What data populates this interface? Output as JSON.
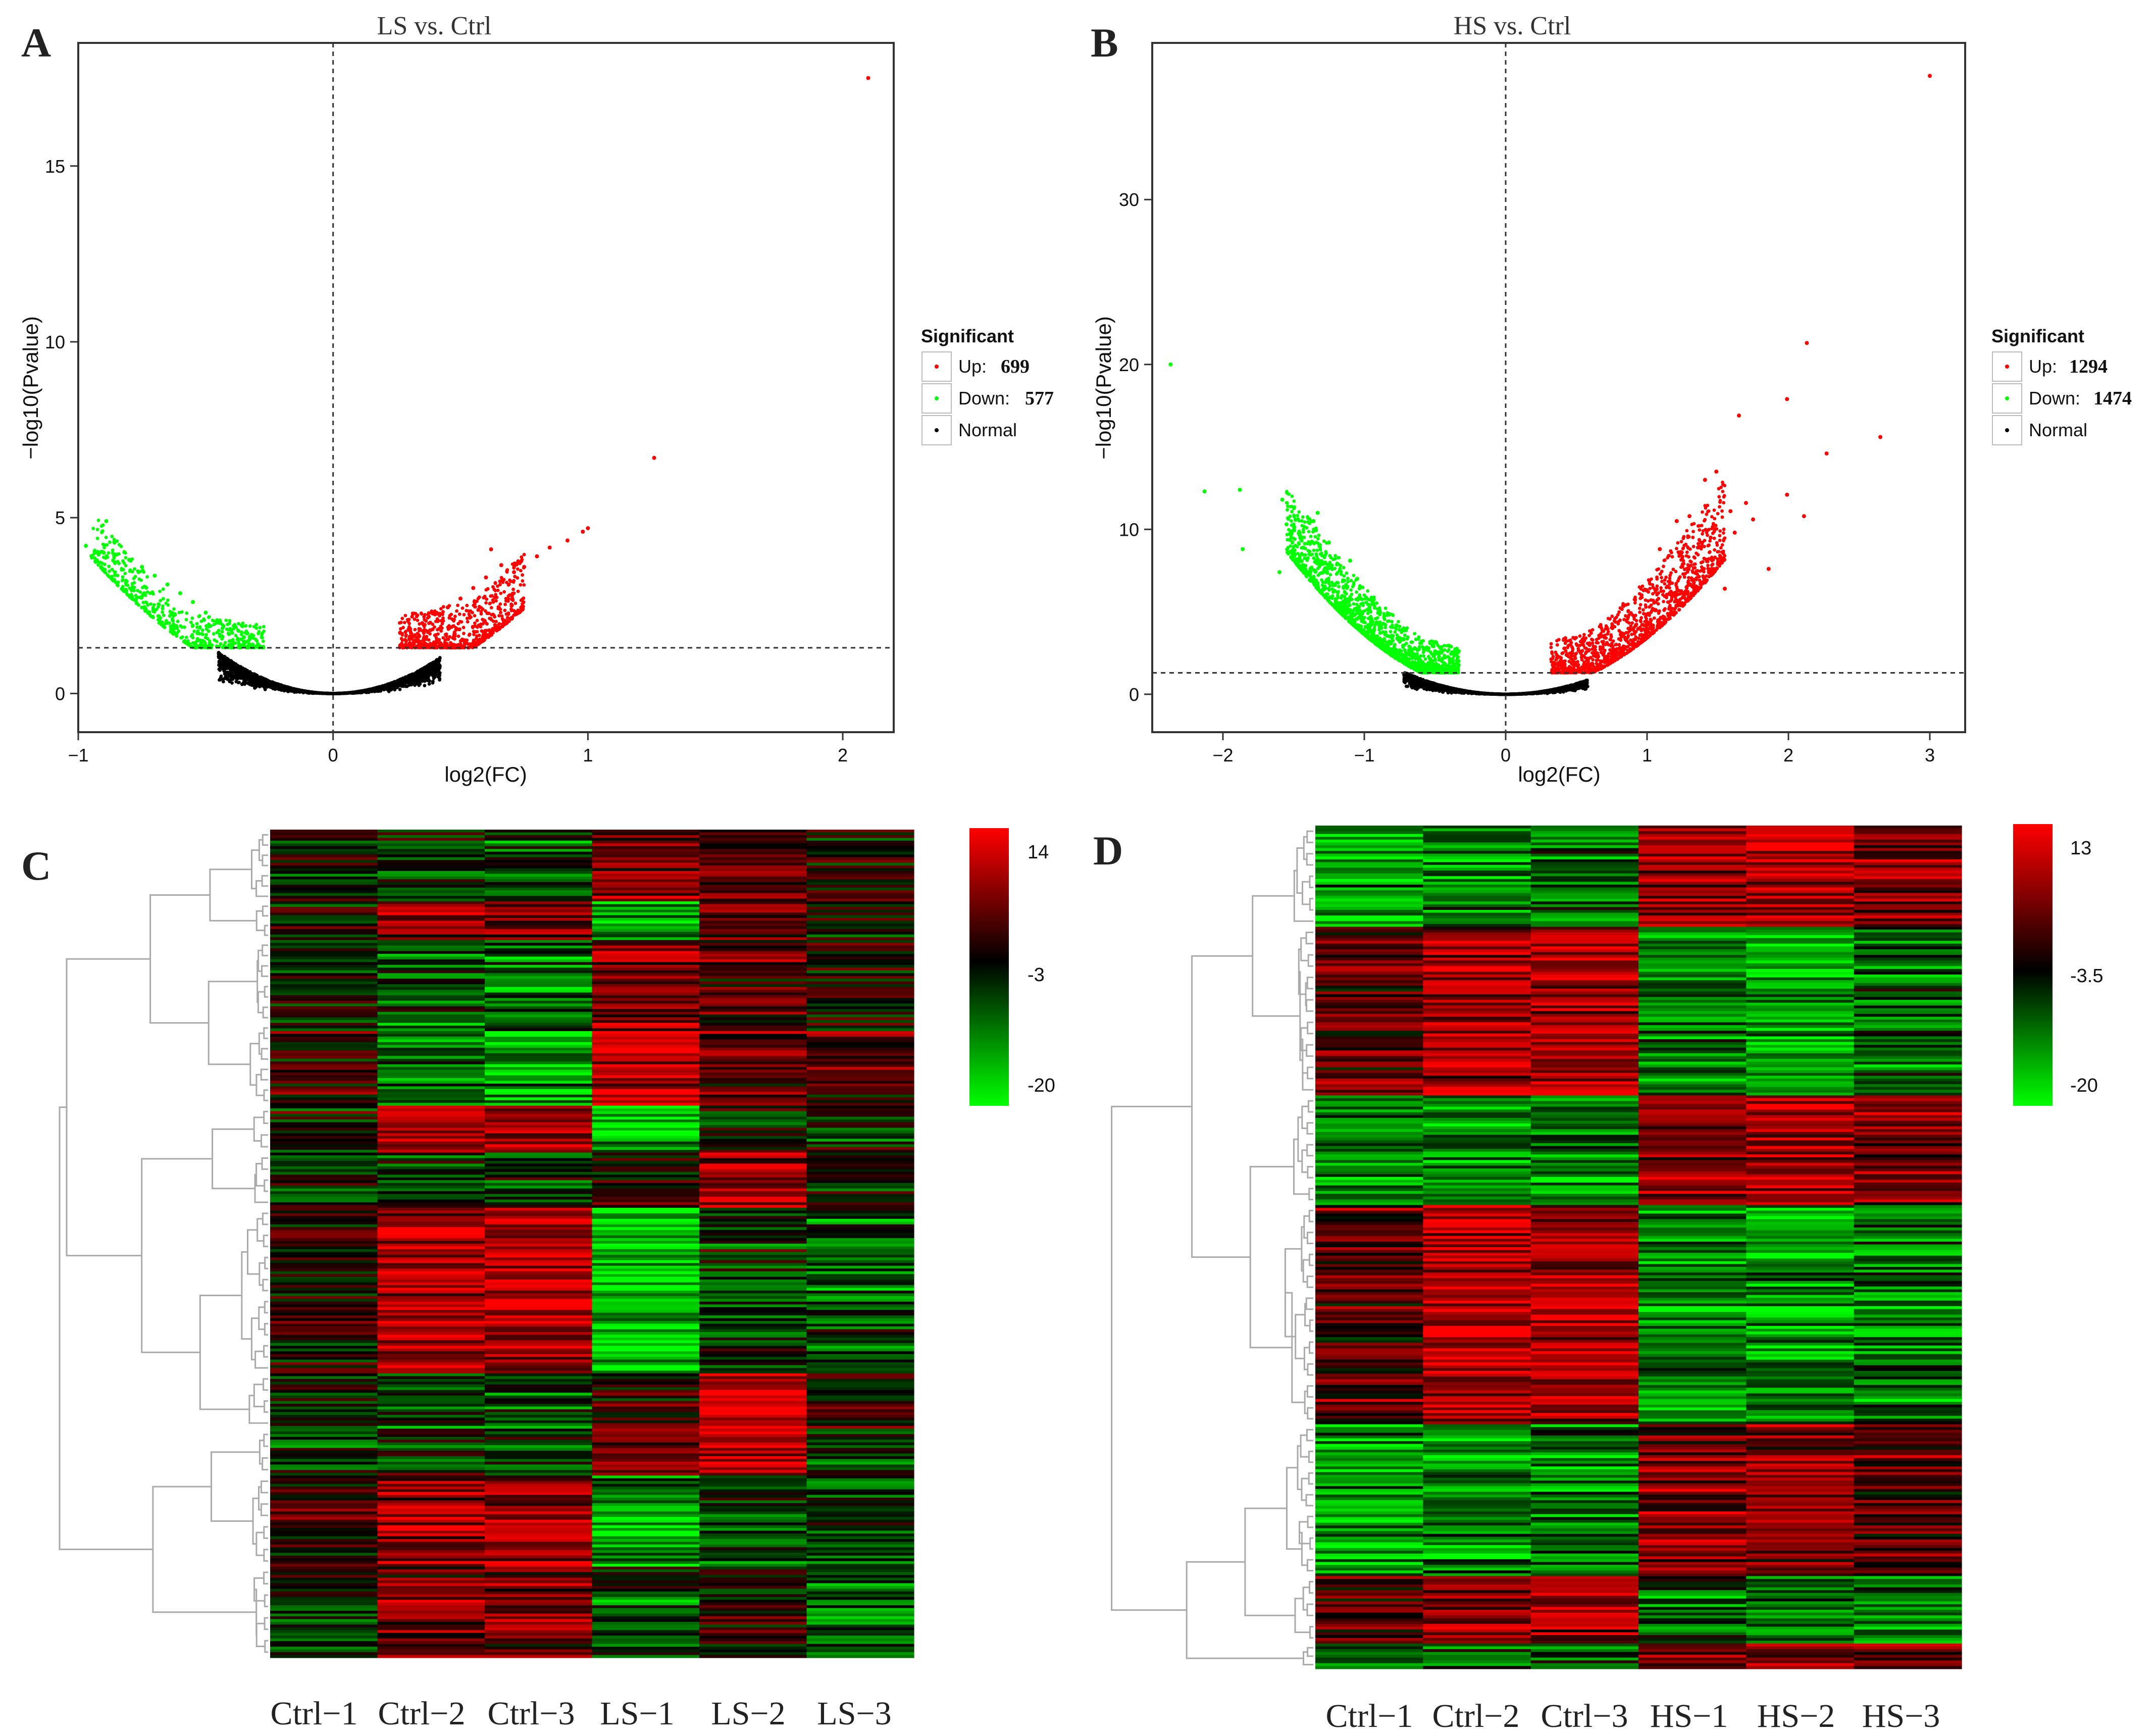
{
  "panels": {
    "A": {
      "letter": "A"
    },
    "B": {
      "letter": "B"
    },
    "C": {
      "letter": "C"
    },
    "D": {
      "letter": "D"
    }
  },
  "chart_data": [
    {
      "panel": "A",
      "type": "scatter",
      "title": "LS vs. Ctrl",
      "xlabel": "log2(FC)",
      "ylabel": "−log10(Pvalue)",
      "xlim": [
        -1.0,
        2.2
      ],
      "ylim": [
        -1.1,
        18.5
      ],
      "xticks": [
        -1,
        0,
        1,
        2
      ],
      "yticks": [
        0,
        5,
        10,
        15
      ],
      "vline": 0,
      "hline": 1.3,
      "legend": {
        "title": "Significant",
        "placement": "right",
        "entries": [
          {
            "key": "up",
            "label": "Up:",
            "count": "699",
            "color": "#ff0000"
          },
          {
            "key": "down",
            "label": "Down:",
            "count": "577",
            "color": "#00ff00"
          },
          {
            "key": "normal",
            "label": "Normal",
            "count": "",
            "color": "#000000"
          }
        ]
      },
      "series": [
        {
          "name": "Up",
          "color": "#ff0000",
          "points": [
            [
              2.1,
              17.5
            ],
            [
              1.26,
              6.7
            ],
            [
              1.0,
              4.7
            ],
            [
              0.98,
              4.6
            ],
            [
              0.92,
              4.35
            ],
            [
              0.85,
              4.15
            ],
            [
              0.8,
              3.9
            ],
            [
              0.75,
              3.6
            ],
            [
              0.71,
              3.45
            ],
            [
              0.62,
              4.1
            ],
            [
              0.66,
              3.65
            ],
            [
              0.6,
              3.3
            ],
            [
              0.55,
              3.0
            ],
            [
              0.5,
              2.7
            ],
            [
              0.45,
              2.45
            ],
            [
              0.4,
              2.25
            ],
            [
              0.35,
              2.0
            ],
            [
              0.3,
              1.8
            ]
          ],
          "cloud": {
            "x": [
              0.26,
              0.75
            ],
            "ymin": 1.3,
            "n": 699,
            "curve": 4.3,
            "spread": 1.4
          }
        },
        {
          "name": "Down",
          "color": "#00ff00",
          "points": [
            [
              -0.89,
              4.9
            ],
            [
              -0.97,
              4.2
            ],
            [
              -0.9,
              4.0
            ],
            [
              -0.85,
              3.95
            ],
            [
              -0.8,
              3.8
            ],
            [
              -0.75,
              3.6
            ],
            [
              -0.7,
              3.35
            ],
            [
              -0.65,
              3.1
            ],
            [
              -0.6,
              2.85
            ],
            [
              -0.55,
              2.6
            ],
            [
              -0.5,
              2.3
            ],
            [
              -0.45,
              2.05
            ],
            [
              -0.4,
              1.8
            ],
            [
              -0.35,
              1.6
            ]
          ],
          "cloud": {
            "x": [
              -0.95,
              -0.27
            ],
            "ymin": 1.3,
            "n": 577,
            "curve": 4.3,
            "spread": 1.0
          }
        },
        {
          "name": "Normal",
          "color": "#000000",
          "cloud": {
            "x": [
              -0.45,
              0.42
            ],
            "ymin": 0,
            "n": 2600,
            "curve": 5.8,
            "spread": 0.3,
            "ymax": 1.3
          }
        }
      ]
    },
    {
      "panel": "B",
      "type": "scatter",
      "title": "HS vs. Ctrl",
      "xlabel": "log2(FC)",
      "ylabel": "−log10(Pvalue)",
      "xlim": [
        -2.5,
        3.25
      ],
      "ylim": [
        -2.3,
        39.5
      ],
      "xticks": [
        -2,
        -1,
        0,
        1,
        2,
        3
      ],
      "yticks": [
        0,
        10,
        20,
        30
      ],
      "vline": 0,
      "hline": 1.3,
      "legend": {
        "title": "Significant",
        "placement": "right",
        "entries": [
          {
            "key": "up",
            "label": "Up:",
            "count": "1294",
            "color": "#ff0000"
          },
          {
            "key": "down",
            "label": "Down:",
            "count": "1474",
            "color": "#00ff00"
          },
          {
            "key": "normal",
            "label": "Normal",
            "count": "",
            "color": "#000000"
          }
        ]
      },
      "series": [
        {
          "name": "Up",
          "color": "#ff0000",
          "points": [
            [
              3.0,
              37.5
            ],
            [
              2.13,
              21.3
            ],
            [
              1.99,
              17.9
            ],
            [
              1.65,
              16.9
            ],
            [
              2.65,
              15.6
            ],
            [
              2.27,
              14.6
            ],
            [
              1.49,
              13.5
            ],
            [
              1.41,
              13.0
            ],
            [
              1.99,
              12.1
            ],
            [
              1.7,
              11.6
            ],
            [
              2.11,
              10.8
            ],
            [
              1.59,
              11.1
            ],
            [
              1.86,
              7.6
            ],
            [
              1.55,
              6.4
            ],
            [
              1.3,
              10.8
            ],
            [
              1.21,
              10.5
            ],
            [
              1.45,
              9.5
            ],
            [
              1.75,
              10.6
            ],
            [
              1.62,
              9.8
            ],
            [
              1.36,
              8.9
            ],
            [
              1.52,
              8.3
            ],
            [
              1.28,
              7.6
            ],
            [
              1.09,
              8.8
            ]
          ],
          "cloud": {
            "x": [
              0.32,
              1.55
            ],
            "ymin": 1.3,
            "n": 1294,
            "curve": 3.4,
            "spread": 2.6
          }
        },
        {
          "name": "Down",
          "color": "#00ff00",
          "points": [
            [
              -2.37,
              20.0
            ],
            [
              -1.88,
              12.4
            ],
            [
              -2.13,
              12.3
            ],
            [
              -1.58,
              11.8
            ],
            [
              -1.33,
              11.0
            ],
            [
              -1.36,
              10.5
            ],
            [
              -1.86,
              8.8
            ],
            [
              -1.55,
              10.3
            ],
            [
              -1.44,
              9.5
            ],
            [
              -1.25,
              9.2
            ],
            [
              -1.5,
              8.6
            ],
            [
              -1.1,
              8.1
            ],
            [
              -1.3,
              7.9
            ],
            [
              -1.6,
              7.4
            ],
            [
              -1.05,
              7.0
            ]
          ],
          "cloud": {
            "x": [
              -1.55,
              -0.33
            ],
            "ymin": 1.3,
            "n": 1474,
            "curve": 3.6,
            "spread": 2.1
          }
        },
        {
          "name": "Normal",
          "color": "#000000",
          "cloud": {
            "x": [
              -0.72,
              0.58
            ],
            "ymin": 0,
            "n": 2600,
            "curve": 2.6,
            "spread": 0.3,
            "ymax": 1.3
          }
        }
      ]
    },
    {
      "panel": "C",
      "type": "heatmap",
      "columns": [
        "Ctrl−1",
        "Ctrl−2",
        "Ctrl−3",
        "LS−1",
        "LS−2",
        "LS−3"
      ],
      "colorbar": {
        "max": "14",
        "mid": "-3",
        "min": "-20",
        "colors": [
          "#ff0000",
          "#000000",
          "#00ff00"
        ]
      },
      "rows": 300,
      "blocks": [
        {
          "frac": 0.085,
          "levels": [
            -0.05,
            -0.2,
            -0.3,
            0.45,
            0.4,
            0.1
          ]
        },
        {
          "frac": 0.045,
          "levels": [
            0.0,
            0.55,
            0.55,
            -0.7,
            0.5,
            0.05
          ]
        },
        {
          "frac": 0.1,
          "levels": [
            0.0,
            -0.3,
            -0.4,
            0.55,
            0.3,
            0.15
          ]
        },
        {
          "frac": 0.1,
          "levels": [
            0.15,
            -0.5,
            -0.6,
            0.75,
            0.35,
            0.25
          ]
        },
        {
          "frac": 0.055,
          "levels": [
            0.0,
            0.6,
            0.6,
            -0.75,
            -0.1,
            -0.1
          ]
        },
        {
          "frac": 0.065,
          "levels": [
            -0.1,
            -0.3,
            -0.2,
            0.2,
            0.7,
            -0.1
          ]
        },
        {
          "frac": 0.2,
          "levels": [
            0.1,
            0.7,
            0.65,
            -0.8,
            -0.15,
            -0.3
          ]
        },
        {
          "frac": 0.065,
          "levels": [
            -0.15,
            -0.2,
            -0.25,
            0.2,
            0.85,
            0.1
          ]
        },
        {
          "frac": 0.055,
          "levels": [
            -0.2,
            -0.1,
            -0.15,
            0.4,
            0.75,
            -0.25
          ]
        },
        {
          "frac": 0.11,
          "levels": [
            0.2,
            0.55,
            0.6,
            -0.55,
            -0.15,
            -0.3
          ]
        },
        {
          "frac": 0.12,
          "levels": [
            -0.1,
            0.35,
            0.4,
            -0.3,
            0.05,
            -0.35
          ]
        }
      ]
    },
    {
      "panel": "D",
      "type": "heatmap",
      "columns": [
        "Ctrl−1",
        "Ctrl−2",
        "Ctrl−3",
        "HS−1",
        "HS−2",
        "HS−3"
      ],
      "colorbar": {
        "max": "13",
        "mid": "-3.5",
        "min": "-20",
        "colors": [
          "#ff0000",
          "#000000",
          "#00ff00"
        ]
      },
      "rows": 300,
      "blocks": [
        {
          "frac": 0.12,
          "levels": [
            -0.6,
            -0.5,
            -0.35,
            0.5,
            0.7,
            0.4
          ]
        },
        {
          "frac": 0.2,
          "levels": [
            0.3,
            0.65,
            0.65,
            -0.45,
            -0.6,
            -0.35
          ]
        },
        {
          "frac": 0.13,
          "levels": [
            -0.5,
            -0.55,
            -0.45,
            0.55,
            0.65,
            0.45
          ]
        },
        {
          "frac": 0.26,
          "levels": [
            0.3,
            0.7,
            0.65,
            -0.55,
            -0.6,
            -0.45
          ]
        },
        {
          "frac": 0.18,
          "levels": [
            -0.6,
            -0.55,
            -0.5,
            0.5,
            0.55,
            0.35
          ]
        },
        {
          "frac": 0.08,
          "levels": [
            0.35,
            0.55,
            0.6,
            -0.4,
            -0.55,
            -0.55
          ]
        },
        {
          "frac": 0.03,
          "levels": [
            -0.3,
            -0.4,
            -0.4,
            0.45,
            0.5,
            0.4
          ]
        }
      ]
    }
  ]
}
